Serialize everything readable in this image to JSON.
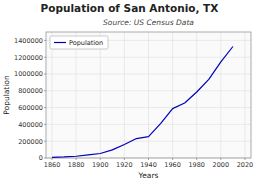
{
  "chart_data": {
    "type": "line",
    "title": "Population of San Antonio, TX",
    "subtitle": "Source: US Census Data",
    "xlabel": "Years",
    "ylabel": "Population",
    "x": [
      1860,
      1870,
      1880,
      1890,
      1900,
      1910,
      1920,
      1930,
      1940,
      1950,
      1960,
      1970,
      1980,
      1990,
      2000,
      2010
    ],
    "series": [
      {
        "name": "Population",
        "color": "#0000bb",
        "values": [
          8235,
          12256,
          20550,
          37673,
          53321,
          96614,
          161379,
          231542,
          253854,
          408442,
          587718,
          654153,
          785880,
          935933,
          1144646,
          1327407
        ]
      }
    ],
    "xlim": [
      1855,
      2025
    ],
    "ylim": [
      0,
      1500000
    ],
    "xticks": [
      1860,
      1880,
      1900,
      1920,
      1940,
      1960,
      1980,
      2000,
      2020
    ],
    "yticks": [
      0,
      200000,
      400000,
      600000,
      800000,
      1000000,
      1200000,
      1400000
    ],
    "grid": true,
    "legend": "upper left"
  }
}
